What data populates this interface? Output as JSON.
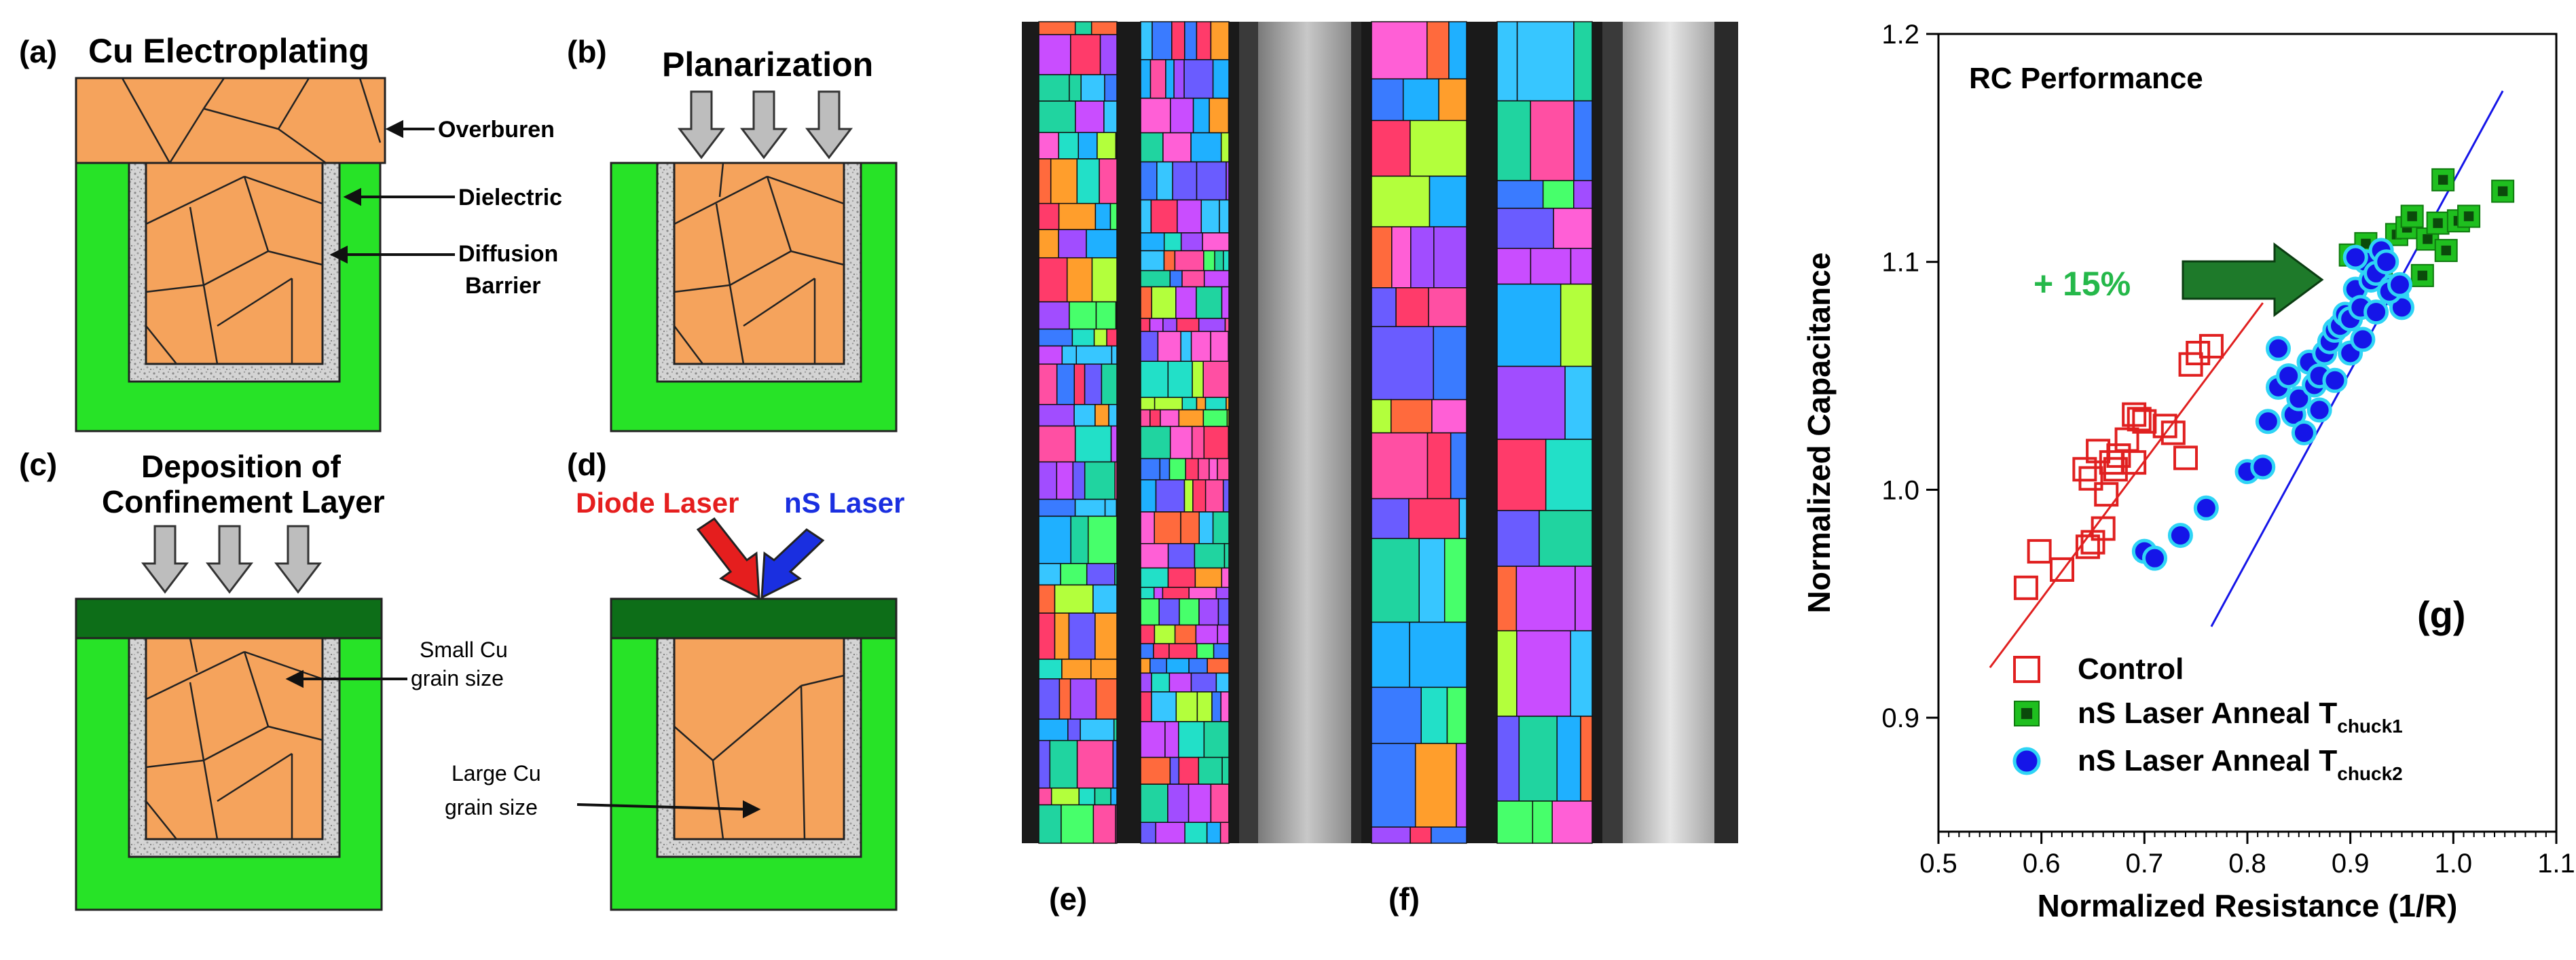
{
  "panels": {
    "a": {
      "letter": "(a)",
      "title": "Cu Electroplating",
      "labels": {
        "overburden": "Overburen",
        "dielectric": "Dielectric",
        "barrier1": "Diffusion",
        "barrier2": "Barrier"
      }
    },
    "b": {
      "letter": "(b)",
      "title": "Planarization"
    },
    "c": {
      "letter": "(c)",
      "title1": "Deposition of",
      "title2": "Confinement Layer",
      "small1": "Small Cu",
      "small2": "grain size",
      "large1": "Large Cu",
      "large2": "grain size"
    },
    "d": {
      "letter": "(d)",
      "diode": "Diode Laser",
      "ns": "nS Laser"
    },
    "e": {
      "letter": "(e)"
    },
    "f": {
      "letter": "(f)"
    },
    "g": {
      "letter": "(g)"
    }
  },
  "colors": {
    "copper": "#f5a35c",
    "dielectric": "#27e327",
    "cap": "#0d6e18",
    "barrier": "#cfcfcf",
    "control": "#e02020",
    "tchuck1": "#1fbf1f",
    "tchuck2": "#1515e8",
    "tchuck2_edge": "#2fd4f5",
    "arrow": "#1e7a2a",
    "gain_text": "#25b84a",
    "diode": "#e51e1e",
    "ns": "#1a2fe0"
  },
  "chart_data": {
    "type": "scatter",
    "title": "RC Performance",
    "xlabel": "Normalized Resistance (1/R)",
    "ylabel": "Normalized Capacitance",
    "xlim": [
      0.5,
      1.1
    ],
    "ylim": [
      0.85,
      1.2
    ],
    "xticks": [
      "0.5",
      "0.6",
      "0.7",
      "0.8",
      "0.9",
      "1.0",
      "1.1"
    ],
    "yticks": [
      "0.9",
      "1.0",
      "1.1",
      "1.2"
    ],
    "annotation": "+ 15%",
    "legend_position": "bottom-left",
    "series": [
      {
        "name": "Control",
        "marker": "open-square",
        "x": [
          0.585,
          0.598,
          0.62,
          0.645,
          0.65,
          0.66,
          0.663,
          0.672,
          0.642,
          0.648,
          0.668,
          0.655,
          0.69,
          0.695,
          0.675,
          0.683,
          0.72,
          0.728,
          0.745,
          0.74,
          0.752,
          0.765,
          0.69,
          0.7
        ],
        "y": [
          0.957,
          0.973,
          0.965,
          0.975,
          0.977,
          0.983,
          0.998,
          1.009,
          1.009,
          1.005,
          1.012,
          1.017,
          1.033,
          1.031,
          1.015,
          1.022,
          1.028,
          1.025,
          1.055,
          1.014,
          1.06,
          1.063,
          1.012,
          1.03
        ],
        "fit": [
          [
            0.55,
            0.922
          ],
          [
            0.815,
            1.082
          ]
        ]
      },
      {
        "name": "nS Laser Anneal",
        "sub": "chuck1",
        "marker": "filled-square",
        "x": [
          0.9,
          0.915,
          0.93,
          0.945,
          0.955,
          0.96,
          0.975,
          0.985,
          0.99,
          0.993,
          1.005,
          1.015,
          1.048,
          0.97
        ],
        "y": [
          1.103,
          1.108,
          1.097,
          1.112,
          1.115,
          1.12,
          1.11,
          1.117,
          1.136,
          1.105,
          1.118,
          1.12,
          1.131,
          1.094
        ],
        "fit": null
      },
      {
        "name": "nS Laser Anneal",
        "sub": "chuck2",
        "marker": "filled-circle",
        "x": [
          0.7,
          0.71,
          0.735,
          0.76,
          0.8,
          0.815,
          0.82,
          0.83,
          0.84,
          0.845,
          0.85,
          0.86,
          0.865,
          0.87,
          0.875,
          0.88,
          0.885,
          0.89,
          0.895,
          0.9,
          0.905,
          0.91,
          0.915,
          0.92,
          0.925,
          0.93,
          0.935,
          0.94,
          0.945,
          0.95,
          0.83,
          0.855,
          0.87,
          0.885,
          0.9,
          0.912,
          0.925,
          0.938,
          0.948,
          0.905
        ],
        "y": [
          0.973,
          0.97,
          0.98,
          0.992,
          1.008,
          1.01,
          1.03,
          1.045,
          1.05,
          1.033,
          1.04,
          1.056,
          1.046,
          1.05,
          1.06,
          1.065,
          1.07,
          1.072,
          1.077,
          1.075,
          1.088,
          1.08,
          1.1,
          1.092,
          1.095,
          1.105,
          1.1,
          1.089,
          1.085,
          1.08,
          1.062,
          1.025,
          1.035,
          1.048,
          1.06,
          1.066,
          1.078,
          1.087,
          1.09,
          1.102
        ],
        "fit": [
          [
            0.765,
            0.94
          ],
          [
            1.048,
            1.175
          ]
        ]
      }
    ]
  }
}
